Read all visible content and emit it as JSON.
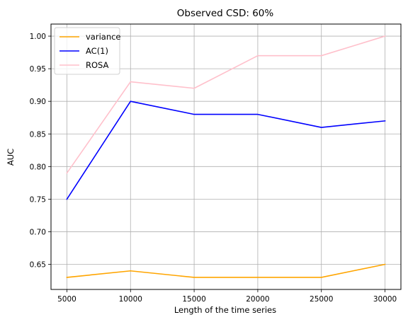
{
  "chart_data": {
    "type": "line",
    "title": "Observed CSD: 60%",
    "xlabel": "Length of the time series",
    "ylabel": "AUC",
    "x": [
      5000,
      10000,
      15000,
      20000,
      25000,
      30000
    ],
    "xticks": [
      "5000",
      "10000",
      "15000",
      "20000",
      "25000",
      "30000"
    ],
    "yticks": [
      "0.65",
      "0.70",
      "0.75",
      "0.80",
      "0.85",
      "0.90",
      "0.95",
      "1.00"
    ],
    "ytick_values": [
      0.65,
      0.7,
      0.75,
      0.8,
      0.85,
      0.9,
      0.95,
      1.0
    ],
    "xlim": [
      3750,
      31250
    ],
    "ylim": [
      0.6115,
      1.0185
    ],
    "grid": true,
    "legend_position": "top-left",
    "series": [
      {
        "name": "variance",
        "color": "#ffa500",
        "values": [
          0.63,
          0.64,
          0.63,
          0.63,
          0.63,
          0.65
        ]
      },
      {
        "name": "AC(1)",
        "color": "#0000ff",
        "values": [
          0.75,
          0.9,
          0.88,
          0.88,
          0.86,
          0.87
        ]
      },
      {
        "name": "ROSA",
        "color": "#ffc0cb",
        "values": [
          0.79,
          0.93,
          0.92,
          0.97,
          0.97,
          1.0
        ]
      }
    ]
  }
}
